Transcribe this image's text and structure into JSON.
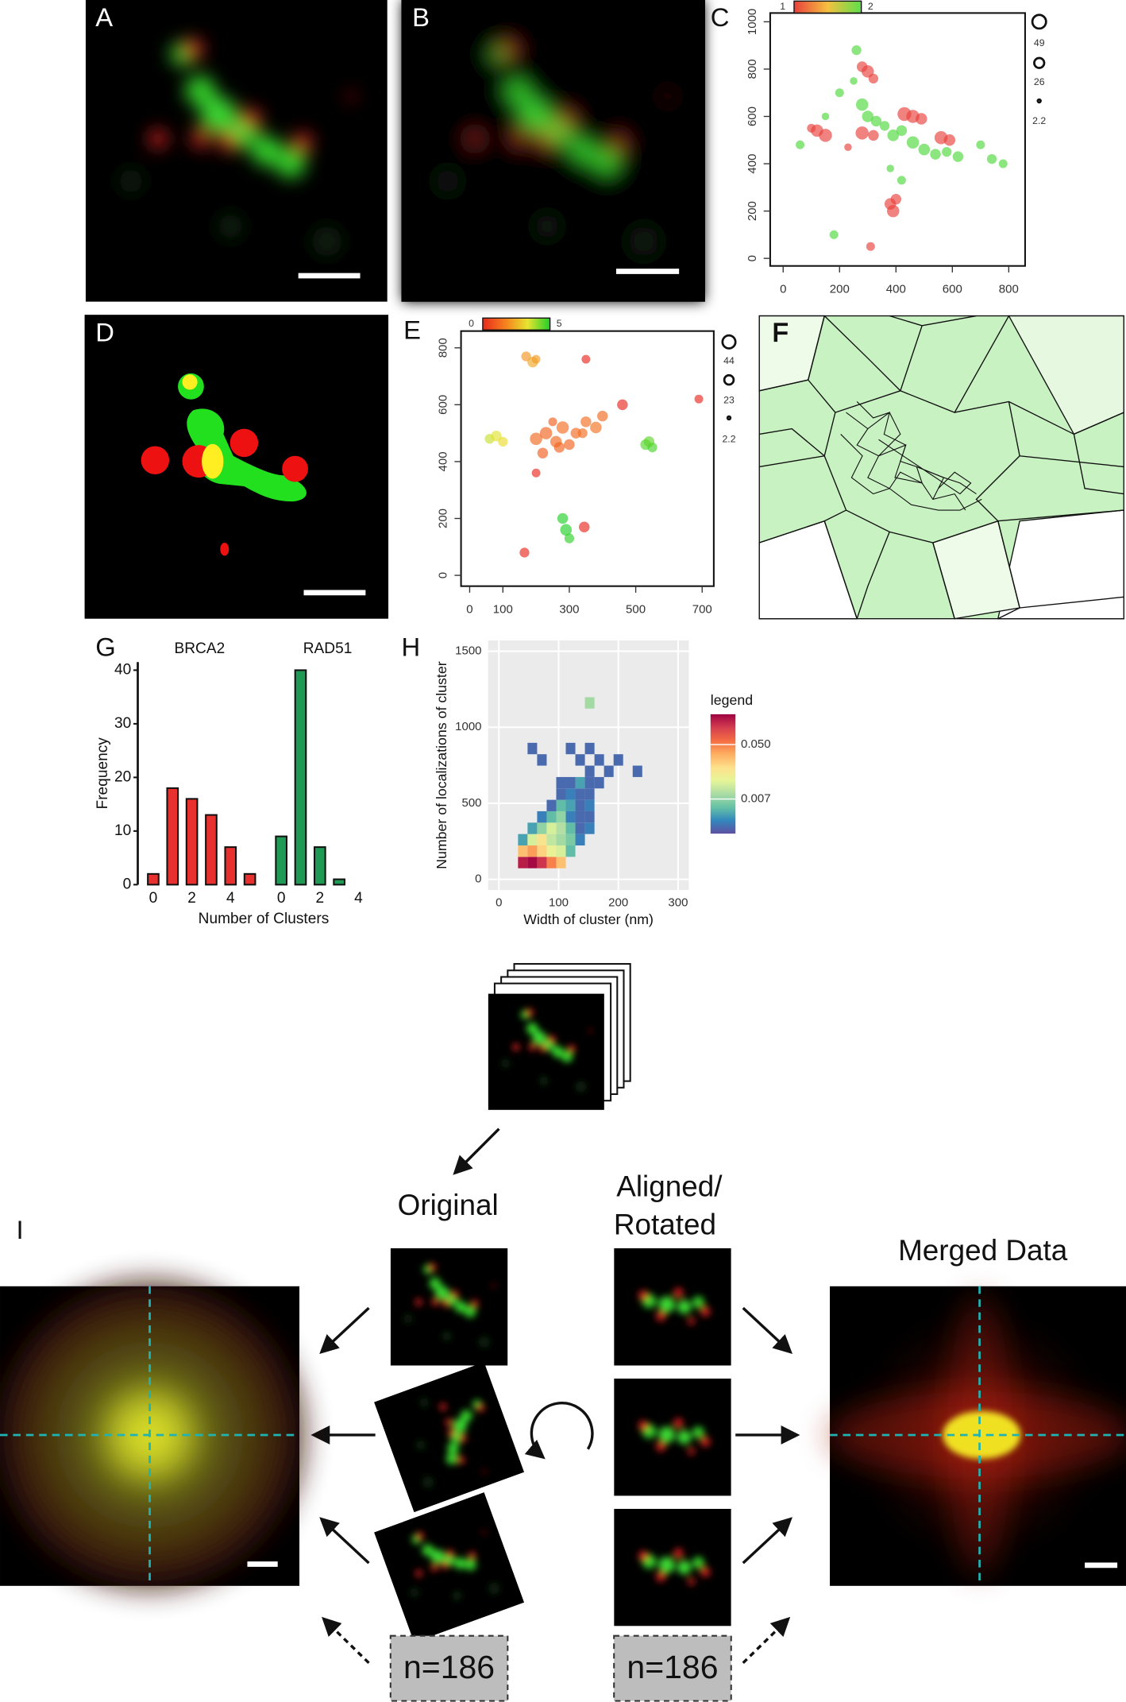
{
  "panel_labels": [
    "A",
    "B",
    "C",
    "D",
    "E",
    "F",
    "G",
    "H",
    "I"
  ],
  "alignment": {
    "original": "Original",
    "aligned": [
      "Aligned/",
      "Rotated"
    ],
    "merged": "Merged Data",
    "counts": [
      "n=186",
      "n=186"
    ]
  },
  "chart_data": [
    {
      "type": "bubble",
      "xlim": [
        -46,
        858
      ],
      "ylim": [
        -32,
        1037
      ],
      "xticks": [
        0,
        200,
        400,
        600,
        800
      ],
      "yticks": [
        0,
        200,
        400,
        600,
        800,
        1000
      ],
      "colorbar": {
        "lim": [
          1,
          2
        ],
        "colors": [
          "#e8413c",
          "#f5c040",
          "#5de04a"
        ]
      },
      "size_legend": [
        49,
        26,
        2.2
      ],
      "series": [
        {
          "color": "#e8413c",
          "x": [
            280,
            300,
            320,
            120,
            150,
            100,
            280,
            320,
            430,
            460,
            490,
            560,
            590,
            380,
            400,
            390,
            310,
            230
          ],
          "y": [
            810,
            790,
            760,
            540,
            520,
            550,
            530,
            520,
            610,
            600,
            590,
            510,
            500,
            230,
            250,
            200,
            50,
            470
          ],
          "sizes": [
            30,
            40,
            25,
            40,
            45,
            20,
            45,
            30,
            50,
            45,
            35,
            45,
            35,
            35,
            30,
            40,
            20,
            15
          ]
        },
        {
          "color": "#4fd83c",
          "x": [
            280,
            300,
            330,
            360,
            390,
            420,
            460,
            500,
            540,
            580,
            620,
            700,
            740,
            780,
            250,
            200,
            150,
            60,
            380,
            420,
            180,
            260
          ],
          "y": [
            650,
            600,
            580,
            560,
            520,
            540,
            490,
            460,
            440,
            450,
            430,
            480,
            420,
            400,
            750,
            700,
            600,
            480,
            380,
            330,
            100,
            880
          ],
          "sizes": [
            40,
            35,
            30,
            25,
            35,
            30,
            40,
            35,
            30,
            25,
            30,
            20,
            25,
            20,
            15,
            20,
            15,
            20,
            15,
            20,
            20,
            25
          ]
        }
      ]
    },
    {
      "type": "bubble",
      "xlim": [
        -26,
        735
      ],
      "ylim": [
        -38,
        859
      ],
      "xticks": [
        0,
        100,
        300,
        500,
        700
      ],
      "yticks": [
        0,
        200,
        400,
        600,
        800
      ],
      "colorbar": {
        "lim": [
          0,
          5
        ],
        "colors": [
          "#e82a1e",
          "#f5801e",
          "#e8e430",
          "#22d02a"
        ]
      },
      "size_legend": [
        44,
        23,
        2.2
      ],
      "series": [
        {
          "x": [
            170,
            190,
            200,
            350,
            60,
            80,
            100,
            530,
            550,
            540,
            280,
            290,
            300,
            200,
            230,
            260,
            280,
            300,
            320,
            250,
            350,
            380,
            400,
            340,
            460,
            690,
            200,
            165,
            345,
            220,
            270
          ],
          "y": [
            770,
            750,
            760,
            760,
            480,
            490,
            470,
            460,
            450,
            470,
            200,
            160,
            130,
            480,
            500,
            470,
            520,
            460,
            500,
            540,
            540,
            520,
            560,
            500,
            600,
            620,
            360,
            80,
            170,
            430,
            450
          ],
          "color_values": [
            2,
            2.3,
            2.1,
            0,
            3.6,
            3.4,
            3.2,
            4.6,
            4.7,
            4.5,
            5,
            5,
            4.9,
            1.2,
            1.1,
            1.2,
            1.3,
            1.1,
            1.2,
            1,
            1.3,
            1.4,
            1.2,
            1.3,
            0,
            0,
            0,
            0,
            0,
            1,
            1.1
          ],
          "sizes": [
            25,
            30,
            20,
            20,
            25,
            30,
            25,
            30,
            25,
            30,
            30,
            35,
            25,
            40,
            40,
            35,
            40,
            30,
            30,
            20,
            30,
            35,
            30,
            25,
            30,
            20,
            20,
            25,
            30,
            30,
            30
          ]
        }
      ]
    },
    {
      "type": "bar",
      "facets": true,
      "x": [
        0,
        1,
        2,
        3,
        4,
        5
      ],
      "xlim": [
        -0.8,
        5.6
      ],
      "xticks": [
        0,
        2,
        4
      ],
      "ylim": [
        0,
        41.5
      ],
      "yticks": [
        0,
        10,
        20,
        30,
        40
      ],
      "xlabel": "Number of Clusters",
      "ylabel": "Frequency",
      "series": [
        {
          "name": "BRCA2",
          "color": "#e8312e",
          "values": [
            2,
            18,
            16,
            13,
            7,
            2
          ]
        },
        {
          "name": "RAD51",
          "color": "#1e9a55",
          "values": [
            9,
            40,
            7,
            1,
            0,
            0
          ]
        }
      ]
    },
    {
      "type": "heatmap",
      "log_color": true,
      "grid": true,
      "xlim": [
        -18,
        318
      ],
      "ylim": [
        -71,
        1571
      ],
      "xticks": [
        0,
        100,
        200,
        300
      ],
      "yticks": [
        0,
        500,
        1000,
        1500
      ],
      "xlabel": "Width of cluster (nm)",
      "ylabel": "Number of localizations of cluster",
      "bin_size": [
        16,
        75
      ],
      "colorbar": {
        "title": "legend",
        "lim": [
          0.002,
          0.15
        ],
        "ticks": [
          {
            "value": 0.05,
            "label": "0.050"
          },
          {
            "value": 0.007,
            "label": "0.007"
          }
        ],
        "colors": [
          "#5e4fa2",
          "#3288bd",
          "#66c2a5",
          "#abdda4",
          "#e6f598",
          "#fee08b",
          "#fdae61",
          "#f46d43",
          "#d53e4f",
          "#9e0142"
        ]
      },
      "cells": {
        "x": [
          40,
          56,
          72,
          88,
          104,
          40,
          56,
          72,
          88,
          104,
          120,
          40,
          56,
          72,
          88,
          104,
          120,
          136,
          56,
          72,
          88,
          104,
          120,
          136,
          152,
          72,
          88,
          104,
          120,
          136,
          152,
          88,
          104,
          120,
          136,
          152,
          104,
          120,
          136,
          152,
          104,
          120,
          136,
          152,
          168,
          152,
          184,
          232,
          72,
          136,
          168,
          200,
          56,
          120,
          152,
          152
        ],
        "y": [
          110,
          110,
          110,
          110,
          110,
          185,
          185,
          185,
          185,
          185,
          185,
          260,
          260,
          260,
          260,
          260,
          260,
          260,
          335,
          335,
          335,
          335,
          335,
          335,
          335,
          410,
          410,
          410,
          410,
          410,
          410,
          485,
          485,
          485,
          485,
          485,
          560,
          560,
          560,
          560,
          635,
          635,
          635,
          635,
          635,
          710,
          710,
          710,
          785,
          785,
          785,
          785,
          860,
          860,
          860,
          1160
        ],
        "values": [
          0.12,
          0.14,
          0.1,
          0.05,
          0.03,
          0.03,
          0.04,
          0.025,
          0.015,
          0.012,
          0.005,
          0.004,
          0.012,
          0.02,
          0.01,
          0.008,
          0.006,
          0.003,
          0.004,
          0.007,
          0.012,
          0.009,
          0.005,
          0.0025,
          0.003,
          0.003,
          0.005,
          0.007,
          0.003,
          0.0025,
          0.0025,
          0.0025,
          0.005,
          0.004,
          0.0025,
          0.003,
          0.0025,
          0.003,
          0.0025,
          0.0025,
          0.0025,
          0.0025,
          0.004,
          0.0025,
          0.0025,
          0.0025,
          0.0025,
          0.0025,
          0.0025,
          0.0025,
          0.0025,
          0.0025,
          0.0025,
          0.0025,
          0.0025,
          0.008
        ]
      }
    }
  ]
}
